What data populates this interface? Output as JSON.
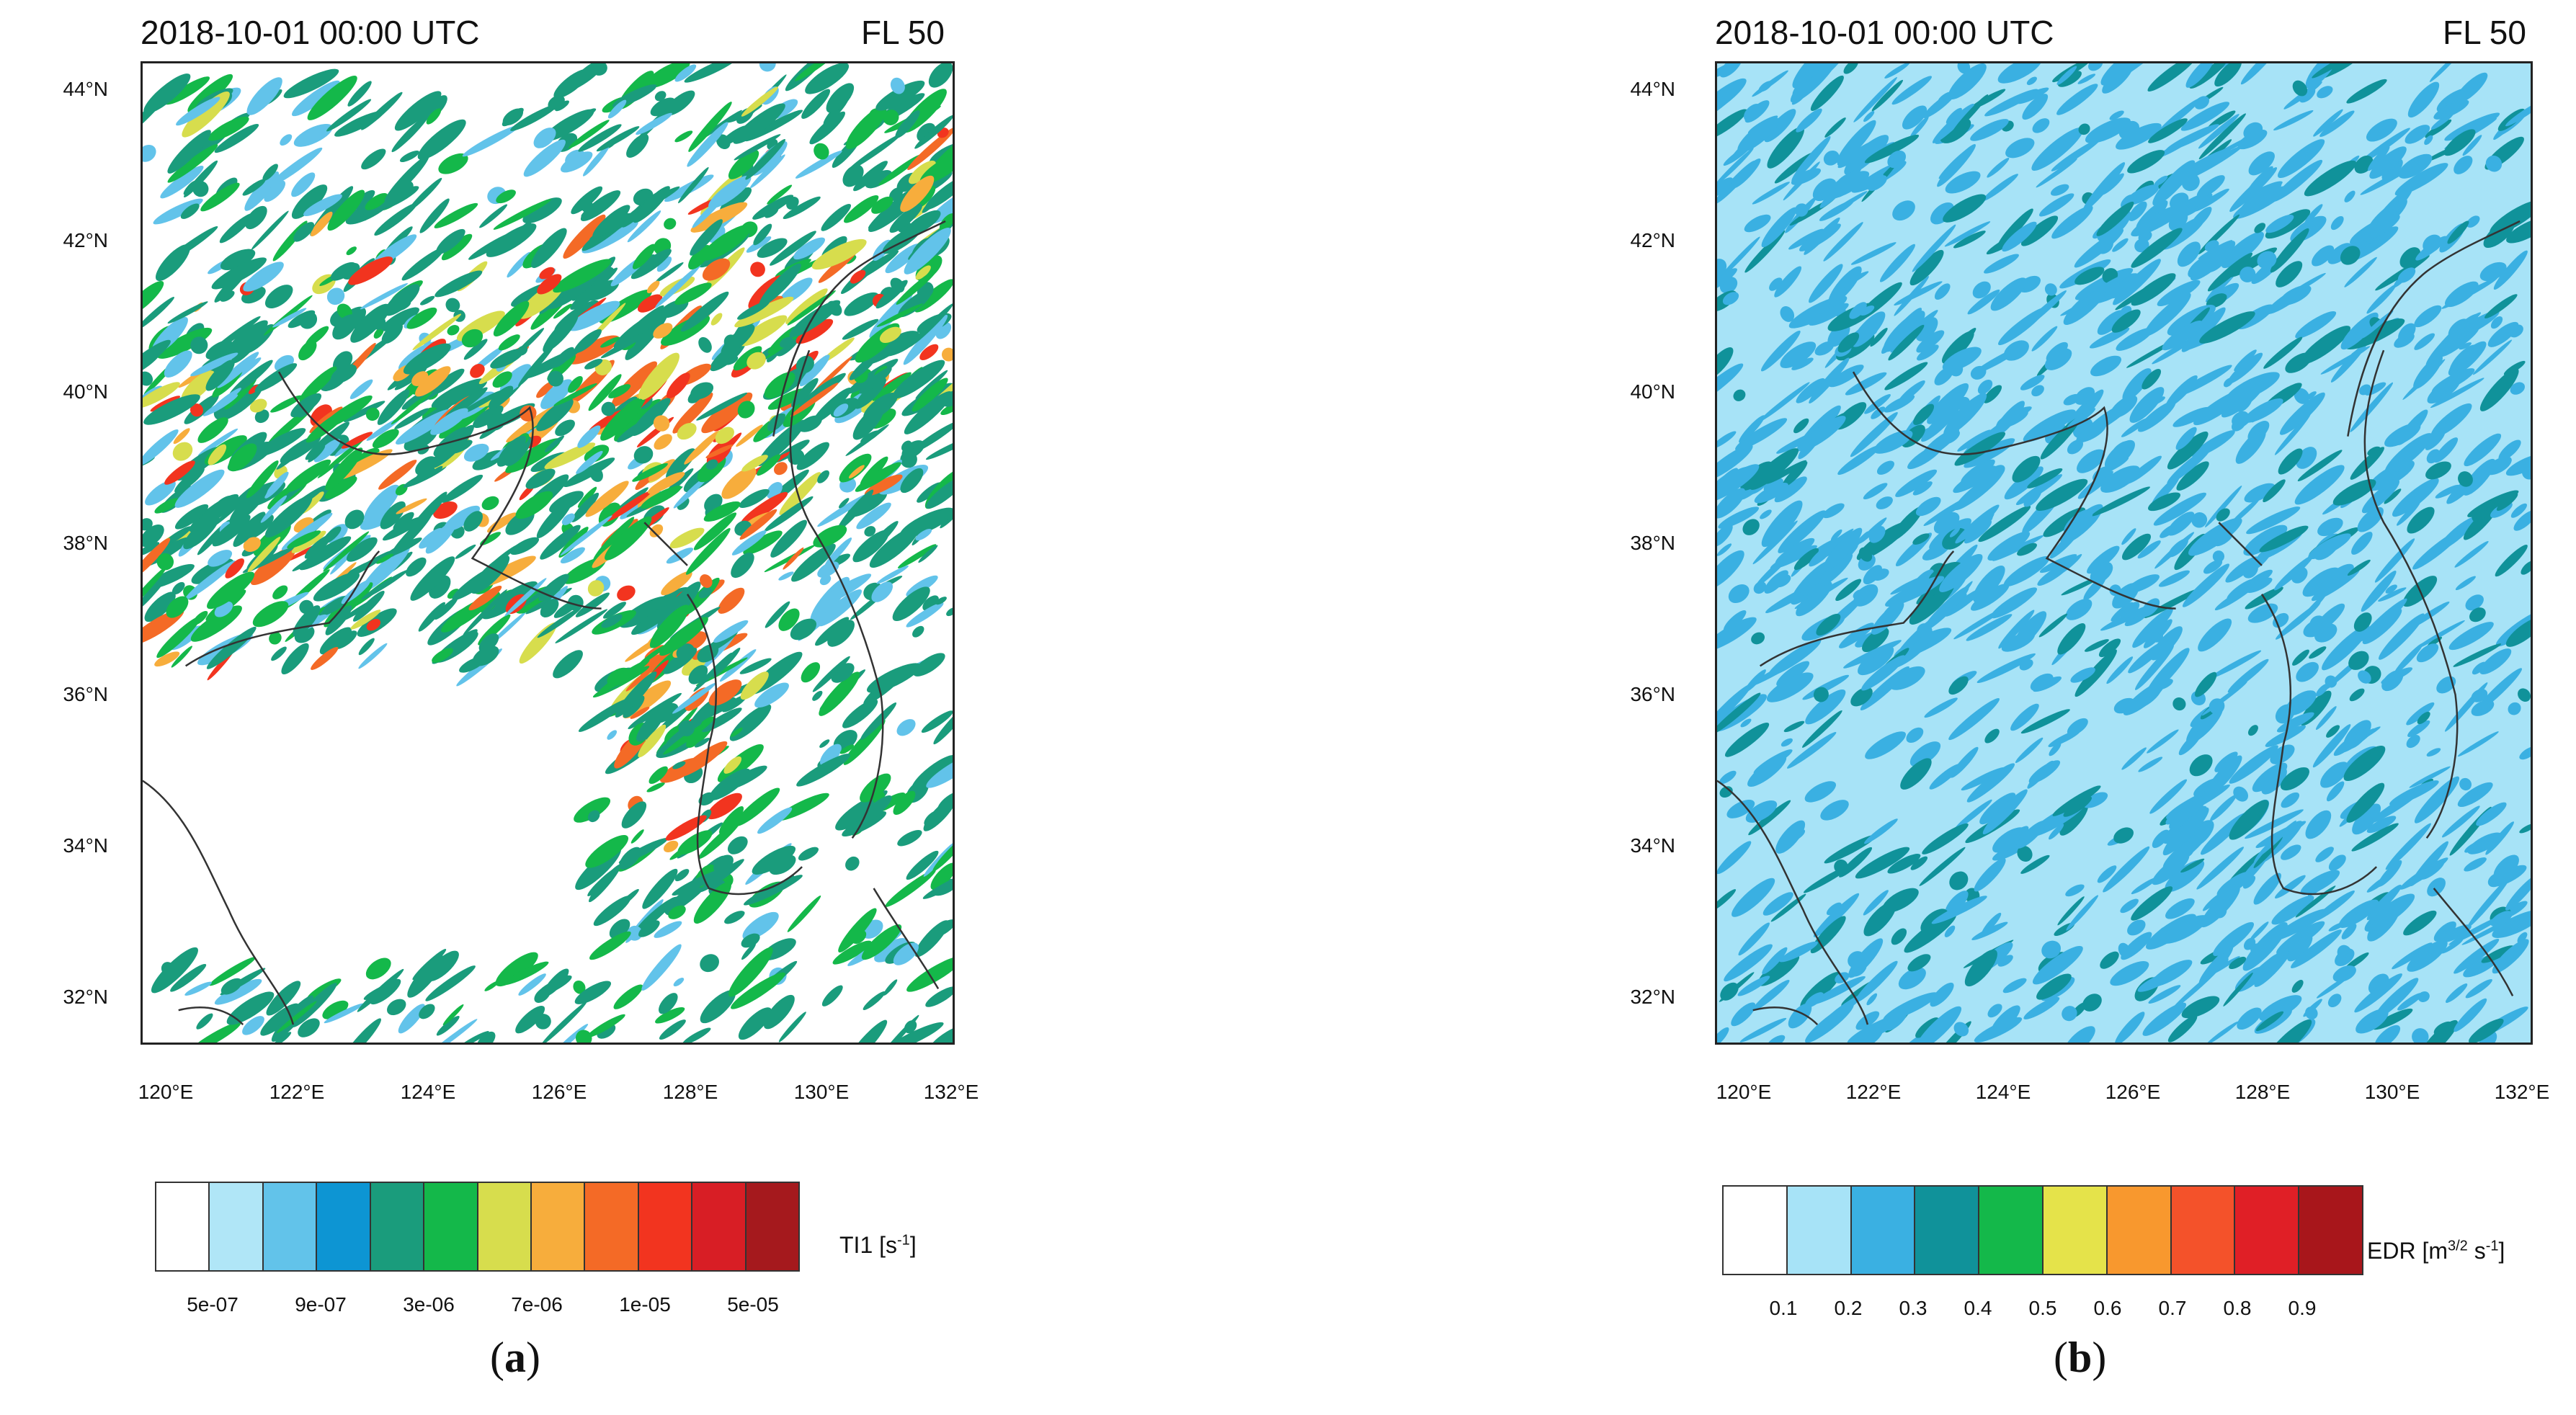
{
  "panels": [
    {
      "id": "a",
      "title_left": "2018-10-01 00:00 UTC",
      "title_right": "FL 50",
      "lat_ticks": [
        "44°N",
        "42°N",
        "40°N",
        "38°N",
        "36°N",
        "34°N",
        "32°N"
      ],
      "lon_ticks": [
        "120°E",
        "122°E",
        "124°E",
        "126°E",
        "128°E",
        "130°E",
        "132°E"
      ],
      "colorbar_colors": [
        "#ffffff",
        "#b0e6f7",
        "#62c3ea",
        "#0d95d3",
        "#1a9c7c",
        "#14b84a",
        "#d7dd4d",
        "#f7ad3c",
        "#f46a26",
        "#f2341f",
        "#d81e25",
        "#a5191d"
      ],
      "colorbar_ticks": [
        "5e-07",
        "9e-07",
        "3e-06",
        "7e-06",
        "1e-05",
        "5e-05"
      ],
      "colorbar_label": "TI1 [s",
      "colorbar_label_sup": "-1",
      "colorbar_label_end": "]",
      "panel_letter": "a"
    },
    {
      "id": "b",
      "title_left": "2018-10-01 00:00 UTC",
      "title_right": "FL 50",
      "lat_ticks": [
        "44°N",
        "42°N",
        "40°N",
        "38°N",
        "36°N",
        "34°N",
        "32°N"
      ],
      "lon_ticks": [
        "120°E",
        "122°E",
        "124°E",
        "126°E",
        "128°E",
        "130°E",
        "132°E"
      ],
      "colorbar_colors": [
        "#ffffff",
        "#a7e3f7",
        "#3ab0e2",
        "#10929a",
        "#14b84a",
        "#e5e34a",
        "#f8982e",
        "#f4522a",
        "#e01f26",
        "#a8161b"
      ],
      "colorbar_ticks": [
        "0.1",
        "0.2",
        "0.3",
        "0.4",
        "0.5",
        "0.6",
        "0.7",
        "0.8",
        "0.9"
      ],
      "colorbar_label": "EDR [m",
      "colorbar_label_sup": "3/2",
      "colorbar_label_mid": " s",
      "colorbar_label_sup2": "-1",
      "colorbar_label_end": "]",
      "panel_letter": "b"
    }
  ]
}
